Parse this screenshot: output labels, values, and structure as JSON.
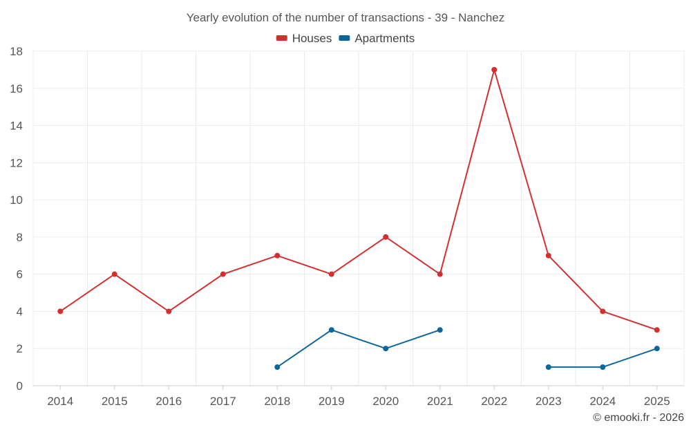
{
  "chart_data": {
    "type": "line",
    "title": "Yearly evolution of the number of transactions - 39 - Nanchez",
    "categories": [
      "2014",
      "2015",
      "2016",
      "2017",
      "2018",
      "2019",
      "2020",
      "2021",
      "2022",
      "2023",
      "2024",
      "2025"
    ],
    "ylim": [
      0,
      18
    ],
    "yticks": [
      0,
      2,
      4,
      6,
      8,
      10,
      12,
      14,
      16,
      18
    ],
    "grid": true,
    "legend_position": "top-center",
    "series": [
      {
        "name": "Houses",
        "color": "#d32f2f",
        "values": [
          4,
          6,
          4,
          6,
          7,
          6,
          8,
          6,
          17,
          7,
          4,
          3
        ]
      },
      {
        "name": "Apartments",
        "color": "#0d6699",
        "values": [
          null,
          null,
          null,
          null,
          1,
          3,
          2,
          3,
          null,
          1,
          1,
          2
        ]
      }
    ]
  },
  "credit": "© emooki.fr - 2026"
}
